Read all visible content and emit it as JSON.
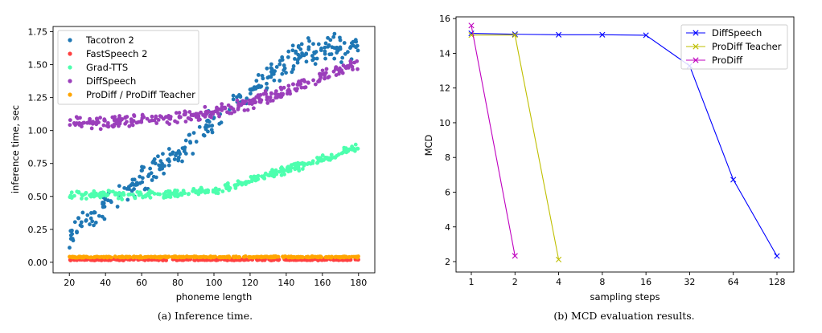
{
  "chart_data": [
    {
      "type": "scatter",
      "caption": "(a)  Inference time.",
      "xlabel": "phoneme length",
      "ylabel": "inference time, sec",
      "xlim": [
        11,
        189
      ],
      "ylim": [
        -0.08,
        1.79
      ],
      "xticks": [
        20,
        40,
        60,
        80,
        100,
        120,
        140,
        160,
        180
      ],
      "xtick_labels": [
        "20",
        "40",
        "60",
        "80",
        "100",
        "120",
        "140",
        "160",
        "180"
      ],
      "yticks": [
        0.0,
        0.25,
        0.5,
        0.75,
        1.0,
        1.25,
        1.5,
        1.75
      ],
      "ytick_labels": [
        "0.00",
        "0.25",
        "0.50",
        "0.75",
        "1.00",
        "1.25",
        "1.50",
        "1.75"
      ],
      "legend_position": "upper-left",
      "series": [
        {
          "name": "Tacotron 2",
          "color": "#1f77b4",
          "x": [
            20,
            30,
            40,
            50,
            60,
            70,
            80,
            90,
            100,
            110,
            120,
            130,
            140,
            150,
            160,
            170,
            180
          ],
          "y": [
            0.22,
            0.34,
            0.44,
            0.53,
            0.63,
            0.73,
            0.83,
            0.95,
            1.07,
            1.18,
            1.3,
            1.4,
            1.52,
            1.6,
            1.63,
            1.62,
            1.6
          ],
          "spread": 0.075
        },
        {
          "name": "FastSpeech 2",
          "color": "#ff4040",
          "x": [
            20,
            60,
            100,
            140,
            180
          ],
          "y": [
            0.02,
            0.02,
            0.02,
            0.02,
            0.02
          ],
          "spread": 0.004
        },
        {
          "name": "Grad-TTS",
          "color": "#4dffae",
          "x": [
            20,
            40,
            60,
            80,
            90,
            100,
            110,
            120,
            130,
            140,
            150,
            160,
            170,
            180
          ],
          "y": [
            0.51,
            0.51,
            0.51,
            0.52,
            0.53,
            0.55,
            0.58,
            0.62,
            0.66,
            0.7,
            0.74,
            0.78,
            0.83,
            0.88
          ],
          "spread": 0.022
        },
        {
          "name": "DiffSpeech",
          "color": "#9b3fbb",
          "x": [
            20,
            40,
            60,
            80,
            90,
            100,
            110,
            120,
            130,
            140,
            150,
            160,
            170,
            180
          ],
          "y": [
            1.06,
            1.06,
            1.07,
            1.1,
            1.12,
            1.14,
            1.17,
            1.21,
            1.26,
            1.31,
            1.36,
            1.42,
            1.46,
            1.5
          ],
          "spread": 0.035
        },
        {
          "name": "ProDiff / ProDiff Teacher",
          "color": "#ffa500",
          "x": [
            20,
            60,
            100,
            140,
            180
          ],
          "y": [
            0.04,
            0.04,
            0.04,
            0.04,
            0.04
          ],
          "spread": 0.004
        }
      ]
    },
    {
      "type": "line",
      "caption": "(b)  MCD evaluation results.",
      "xlabel": "sampling steps",
      "ylabel": "MCD",
      "categories": [
        "1",
        "2",
        "4",
        "8",
        "16",
        "32",
        "64",
        "128"
      ],
      "ylim": [
        1.4,
        16.1
      ],
      "yticks": [
        2,
        4,
        6,
        8,
        10,
        12,
        14,
        16
      ],
      "ytick_labels": [
        "2",
        "4",
        "6",
        "8",
        "10",
        "12",
        "14",
        "16"
      ],
      "legend_position": "upper-right",
      "series": [
        {
          "name": "DiffSpeech",
          "color": "#0000ff",
          "values": [
            15.15,
            15.1,
            15.07,
            15.07,
            15.04,
            13.28,
            6.72,
            2.32
          ]
        },
        {
          "name": "ProDiff Teacher",
          "color": "#bfbf00",
          "values": [
            15.05,
            15.05,
            2.12,
            null,
            null,
            null,
            null,
            null
          ]
        },
        {
          "name": "ProDiff",
          "color": "#bf00bf",
          "values": [
            15.6,
            2.33,
            null,
            null,
            null,
            null,
            null,
            null
          ]
        }
      ]
    }
  ]
}
